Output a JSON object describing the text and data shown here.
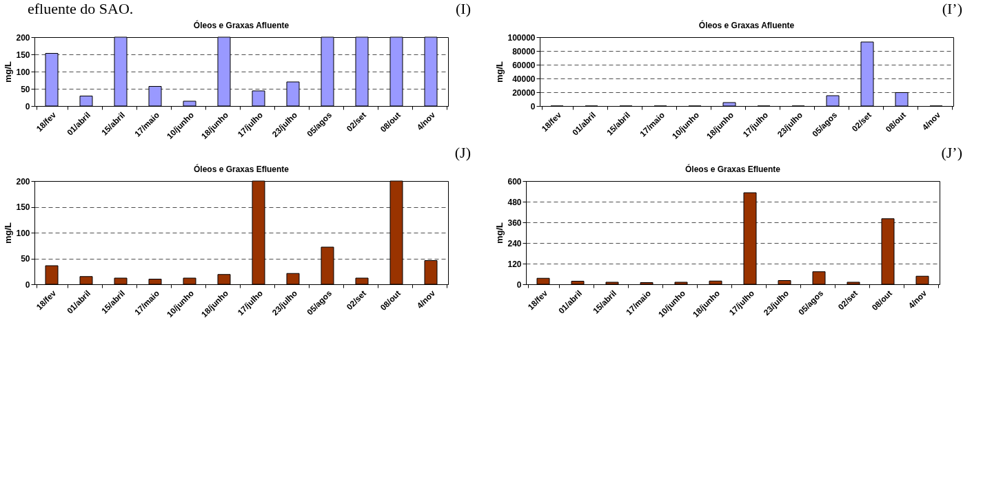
{
  "chart_data": [
    {
      "type": "bar",
      "title": "Óleos e Graxas Afluente",
      "ylabel": "mg/L",
      "annotations": [
        "efluente do SAO.",
        "(I)"
      ],
      "categories": [
        "18/fev",
        "01/abril",
        "15/abril",
        "17/maio",
        "10/junho",
        "18/junho",
        "17/julho",
        "23/julho",
        "05/agos",
        "02/set",
        "08/out",
        "4/nov"
      ],
      "series": [
        {
          "color": "#9999ff",
          "values": [
            153,
            29,
            200,
            57,
            14,
            200,
            44,
            70,
            200,
            200,
            200,
            200
          ]
        }
      ],
      "ylim": [
        0,
        200
      ],
      "yticks": [
        0,
        50,
        100,
        150,
        200
      ],
      "grid": "y"
    },
    {
      "type": "bar",
      "title": "Óleos e Graxas Afluente",
      "ylabel": "mg/L",
      "annotations": [
        "(I’)"
      ],
      "categories": [
        "18/fev",
        "01/abril",
        "15/abril",
        "17/maio",
        "10/junho",
        "18/junho",
        "17/julho",
        "23/julho",
        "05/agos",
        "02/set",
        "08/out",
        "4/nov"
      ],
      "series": [
        {
          "color": "#9999ff",
          "values": [
            0,
            0,
            0,
            0,
            0,
            5000,
            0,
            0,
            15000,
            93000,
            19500,
            0
          ]
        }
      ],
      "ylim": [
        0,
        100000
      ],
      "yticks": [
        0,
        20000,
        40000,
        60000,
        80000,
        100000
      ],
      "grid": "y"
    },
    {
      "type": "bar",
      "title": "Óleos e Graxas Efluente",
      "ylabel": "mg/L",
      "annotations": [
        "(J)"
      ],
      "categories": [
        "18/fev",
        "01/abril",
        "15/abril",
        "17/maio",
        "10/junho",
        "18/junho",
        "17/julho",
        "23/julho",
        "05/agos",
        "02/set",
        "08/out",
        "4/nov"
      ],
      "series": [
        {
          "color": "#993300",
          "values": [
            36,
            15,
            12,
            10,
            12,
            19,
            200,
            21,
            72,
            12,
            200,
            46
          ]
        }
      ],
      "ylim": [
        0,
        200
      ],
      "yticks": [
        0,
        50,
        100,
        150,
        200
      ],
      "grid": "y"
    },
    {
      "type": "bar",
      "title": "Óleos e Graxas Efluente",
      "ylabel": "mg/L",
      "annotations": [
        "(J’)"
      ],
      "categories": [
        "18/fev",
        "01/abril",
        "15/abril",
        "17/maio",
        "10/junho",
        "18/junho",
        "17/julho",
        "23/julho",
        "05/agos",
        "02/set",
        "08/out",
        "4/nov"
      ],
      "series": [
        {
          "color": "#993300",
          "values": [
            35,
            18,
            12,
            10,
            12,
            19,
            532,
            22,
            73,
            12,
            381,
            47
          ]
        }
      ],
      "ylim": [
        0,
        600
      ],
      "yticks": [
        0,
        120,
        240,
        360,
        480,
        600
      ],
      "grid": "y"
    }
  ]
}
